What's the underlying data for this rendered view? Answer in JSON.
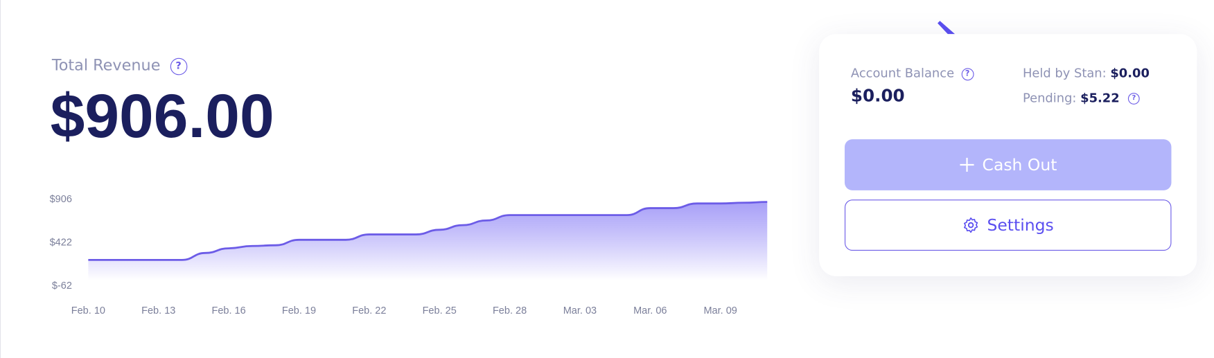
{
  "revenue": {
    "label": "Total Revenue",
    "amount": "$906.00"
  },
  "help_icon": "?",
  "chart_data": {
    "type": "area",
    "color": "#6c5ce7",
    "categories": [
      "Feb. 10",
      null,
      null,
      "Feb. 13",
      null,
      null,
      "Feb. 16",
      null,
      null,
      "Feb. 19",
      null,
      null,
      "Feb. 22",
      null,
      null,
      "Feb. 25",
      null,
      null,
      "Feb. 28",
      null,
      null,
      "Mar. 03",
      null,
      null,
      "Mar. 06",
      null,
      null,
      "Mar. 09",
      null,
      null
    ],
    "values": [
      232,
      232,
      232,
      232,
      232,
      310,
      362,
      388,
      396,
      457,
      457,
      457,
      517,
      517,
      517,
      569,
      621,
      673,
      733,
      733,
      733,
      733,
      733,
      733,
      811,
      811,
      863,
      863,
      871,
      880
    ],
    "ylim": [
      -62,
      906
    ],
    "yticks": [
      {
        "value": -62,
        "label": "$-62"
      },
      {
        "value": 422,
        "label": "$422"
      },
      {
        "value": 906,
        "label": "$906"
      }
    ]
  },
  "balance": {
    "label": "Account Balance",
    "amount": "$0.00",
    "held_label": "Held by Stan:",
    "held_amount": "$0.00",
    "pending_label": "Pending:",
    "pending_amount": "$5.22"
  },
  "buttons": {
    "cash_out": "Cash Out",
    "settings": "Settings"
  }
}
